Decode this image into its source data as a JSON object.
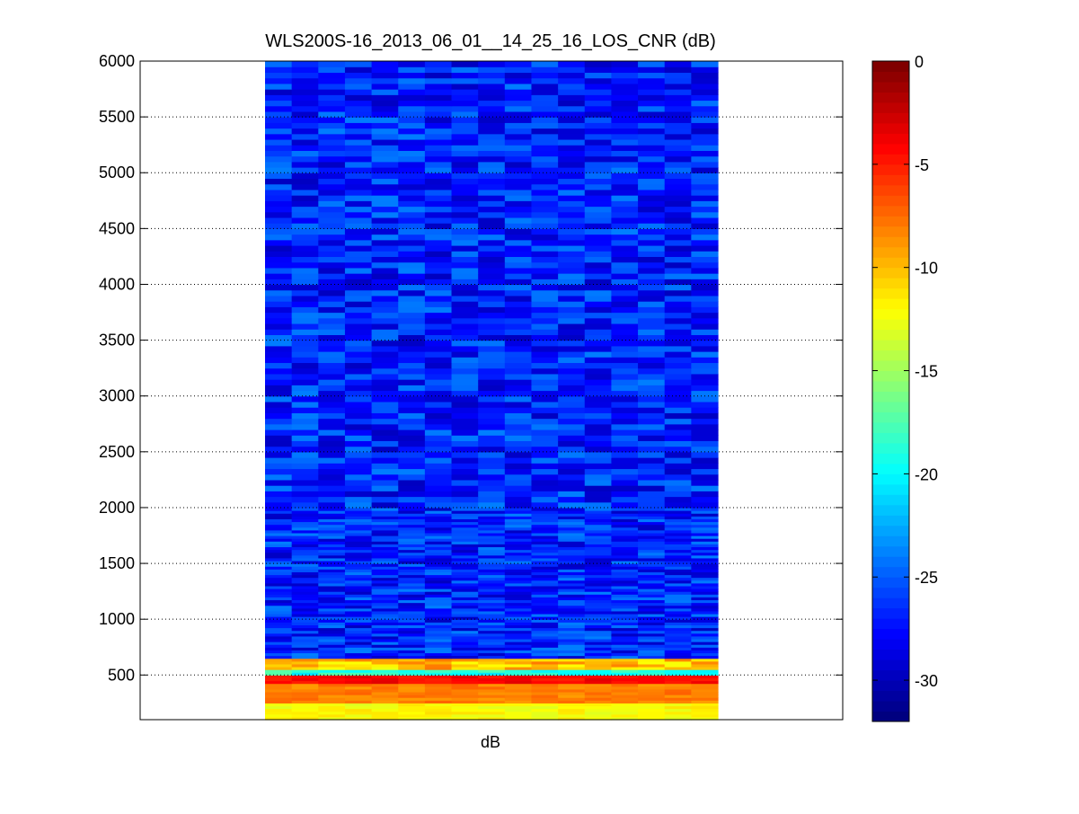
{
  "chart_data": {
    "type": "heatmap",
    "title": "WLS200S-16_2013_06_01__14_25_16_LOS_CNR (dB)",
    "xlabel": "dB",
    "ylabel": "",
    "ylim": [
      100,
      6000
    ],
    "yticks": [
      500,
      1000,
      1500,
      2000,
      2500,
      3000,
      3500,
      4000,
      4500,
      5000,
      5500,
      6000
    ],
    "grid": "horizontal dotted",
    "colormap": "jet",
    "colorbar": {
      "placement": "right",
      "range": [
        -32,
        0
      ],
      "ticks": [
        0,
        -5,
        -10,
        -15,
        -20,
        -25,
        -30
      ]
    },
    "data_summary": {
      "columns": 17,
      "altitude_band_values_db": [
        {
          "range": [
            100,
            250
          ],
          "cnr": -12
        },
        {
          "range": [
            250,
            420
          ],
          "cnr": -8
        },
        {
          "range": [
            420,
            500
          ],
          "cnr": -4
        },
        {
          "range": [
            500,
            560
          ],
          "cnr": -19
        },
        {
          "range": [
            560,
            660
          ],
          "cnr": -10
        },
        {
          "range": [
            660,
            1800
          ],
          "cnr": -27
        },
        {
          "range": [
            1800,
            6000
          ],
          "cnr": -27
        }
      ]
    }
  }
}
